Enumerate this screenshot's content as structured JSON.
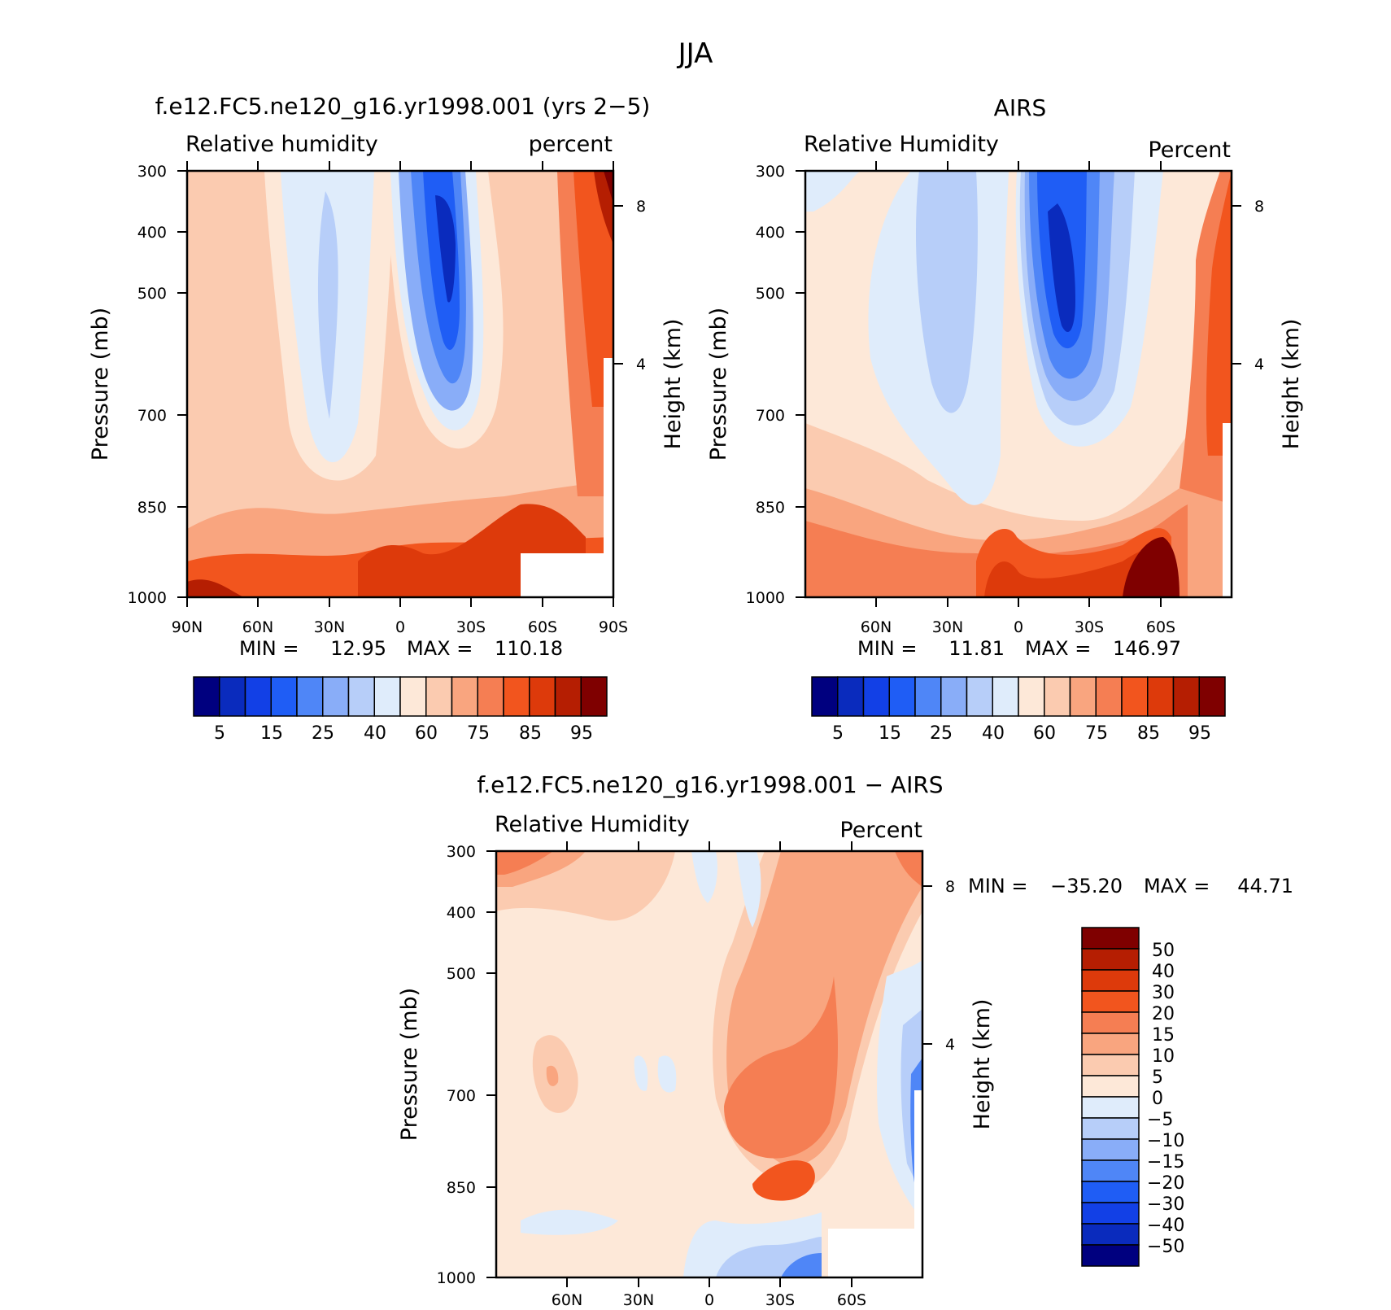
{
  "figure": {
    "title": "JJA"
  },
  "chart_data": [
    {
      "type": "heatmap",
      "case_title": "f.e12.FC5.ne120_g16.yr1998.001 (yrs 2-5)",
      "title": "Relative humidity",
      "units": "percent",
      "ylabel": "Pressure (mb)",
      "y2label": "Height (km)",
      "xlim": [
        90,
        -90
      ],
      "ylim": [
        1000,
        300
      ],
      "x_ticks": [
        "90N",
        "60N",
        "30N",
        "0",
        "30S",
        "60S",
        "90S"
      ],
      "y_ticks": [
        "300",
        "400",
        "500",
        "700",
        "850",
        "1000"
      ],
      "y2_ticks": [
        "8",
        "4"
      ],
      "min_label": "MIN =",
      "min_value": "12.95",
      "max_label": "MAX =",
      "max_value": "110.18",
      "colorbar_labels": [
        "5",
        "15",
        "25",
        "40",
        "60",
        "75",
        "85",
        "95"
      ],
      "colors": [
        "#00007f",
        "#0a2bbd",
        "#1240e6",
        "#1f5df5",
        "#4f86f7",
        "#89adf8",
        "#b7cef9",
        "#dfecfb",
        "#fde8d8",
        "#fbcbb0",
        "#f9a57f",
        "#f57e53",
        "#f2551e",
        "#dd3a0b",
        "#b51e02",
        "#7f0000"
      ]
    },
    {
      "type": "heatmap",
      "case_title": "AIRS",
      "title": "Relative Humidity",
      "units": "Percent",
      "ylabel": "Pressure (mb)",
      "y2label": "Height (km)",
      "xlim": [
        90,
        -90
      ],
      "ylim": [
        1000,
        300
      ],
      "x_ticks": [
        "60N",
        "30N",
        "0",
        "30S",
        "60S"
      ],
      "y_ticks": [
        "300",
        "400",
        "500",
        "700",
        "850",
        "1000"
      ],
      "y2_ticks": [
        "8",
        "4"
      ],
      "min_label": "MIN =",
      "min_value": "11.81",
      "max_label": "MAX =",
      "max_value": "146.97",
      "colorbar_labels": [
        "5",
        "15",
        "25",
        "40",
        "60",
        "75",
        "85",
        "95"
      ],
      "colors": [
        "#00007f",
        "#0a2bbd",
        "#1240e6",
        "#1f5df5",
        "#4f86f7",
        "#89adf8",
        "#b7cef9",
        "#dfecfb",
        "#fde8d8",
        "#fbcbb0",
        "#f9a57f",
        "#f57e53",
        "#f2551e",
        "#dd3a0b",
        "#b51e02",
        "#7f0000"
      ]
    },
    {
      "type": "heatmap",
      "case_title": "f.e12.FC5.ne120_g16.yr1998.001 - AIRS",
      "title": "Relative Humidity",
      "units": "Percent",
      "ylabel": "Pressure (mb)",
      "y2label": "Height (km)",
      "xlim": [
        90,
        -90
      ],
      "ylim": [
        1000,
        300
      ],
      "x_ticks": [
        "60N",
        "30N",
        "0",
        "30S",
        "60S"
      ],
      "y_ticks": [
        "300",
        "400",
        "500",
        "700",
        "850",
        "1000"
      ],
      "y2_ticks": [
        "8",
        "4"
      ],
      "min_label": "MIN =",
      "min_value": "-35.20",
      "max_label": "MAX =",
      "max_value": "44.71",
      "colorbar_labels": [
        "50",
        "40",
        "30",
        "20",
        "15",
        "10",
        "5",
        "0",
        "-5",
        "-10",
        "-15",
        "-20",
        "-30",
        "-40",
        "-50"
      ],
      "colors": [
        "#7f0000",
        "#b51e02",
        "#dd3a0b",
        "#f2551e",
        "#f57e53",
        "#f9a57f",
        "#fbcbb0",
        "#fde8d8",
        "#dfecfb",
        "#b7cef9",
        "#89adf8",
        "#4f86f7",
        "#1f5df5",
        "#1240e6",
        "#0a2bbd",
        "#00007f"
      ]
    }
  ]
}
